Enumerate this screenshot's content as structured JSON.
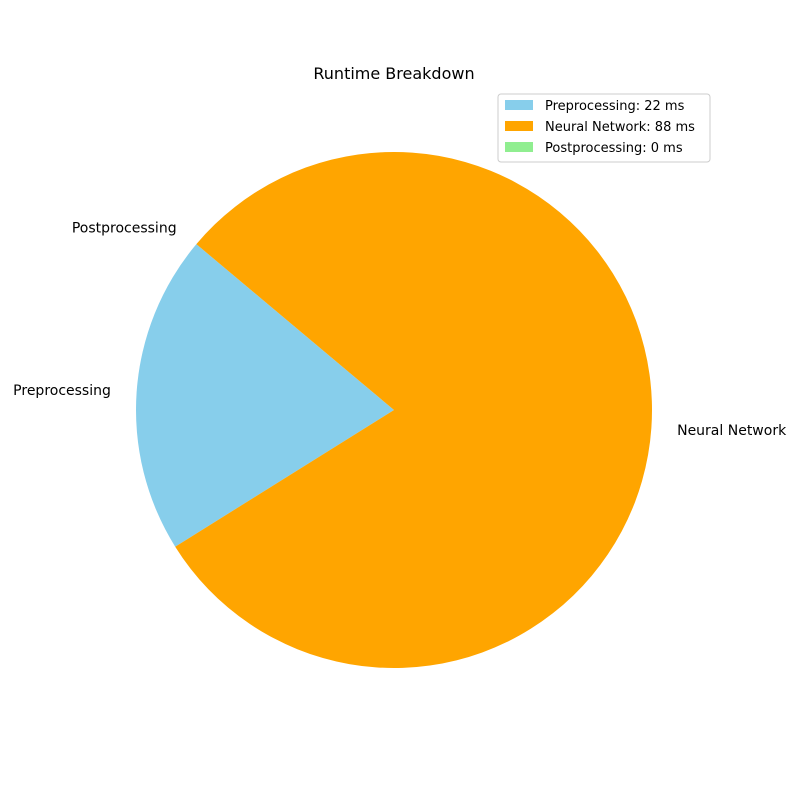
{
  "chart_data": {
    "type": "pie",
    "title": "Runtime Breakdown",
    "slices": [
      {
        "label": "Preprocessing",
        "value": 22,
        "color": "#87CEEB",
        "legend": "Preprocessing: 22 ms"
      },
      {
        "label": "Neural Network",
        "value": 88,
        "color": "#FFA500",
        "legend": "Neural Network: 88 ms"
      },
      {
        "label": "Postprocessing",
        "value": 0,
        "color": "#90EE90",
        "legend": "Postprocessing: 0 ms"
      }
    ],
    "start_angle_deg": 140,
    "direction": "counterclockwise",
    "legend_position": "top-right"
  }
}
